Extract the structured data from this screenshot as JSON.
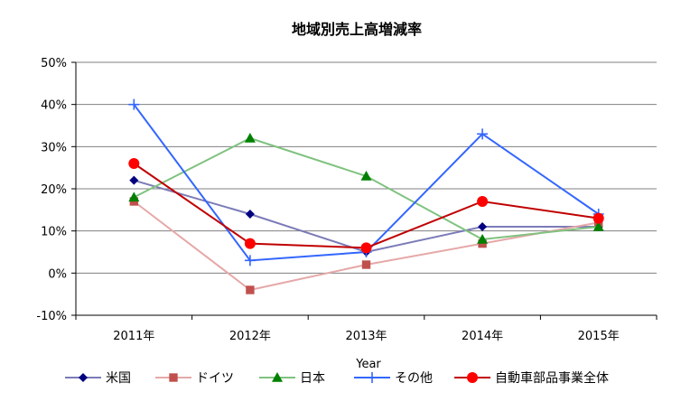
{
  "chart_data": {
    "type": "line",
    "title": "地域別売上高増減率",
    "xlabel": "Year",
    "ylabel": "",
    "categories": [
      "2011年",
      "2012年",
      "2013年",
      "2014年",
      "2015年"
    ],
    "y_ticks": [
      "-10%",
      "0%",
      "10%",
      "20%",
      "30%",
      "40%",
      "50%"
    ],
    "ylim": [
      -10,
      50
    ],
    "grid": true,
    "legend_position": "bottom",
    "series": [
      {
        "name": "米国",
        "values": [
          22,
          14,
          5,
          11,
          11
        ],
        "color": "#7b7bb8",
        "marker_color": "#000080",
        "marker": "diamond"
      },
      {
        "name": "ドイツ",
        "values": [
          17,
          -4,
          2,
          7,
          12
        ],
        "color": "#e6a8a8",
        "marker_color": "#c0504d",
        "marker": "square"
      },
      {
        "name": "日本",
        "values": [
          18,
          32,
          23,
          8,
          11
        ],
        "color": "#7fc27f",
        "marker_color": "#008000",
        "marker": "triangle"
      },
      {
        "name": "その他",
        "values": [
          40,
          3,
          5,
          33,
          14
        ],
        "color": "#3366ff",
        "marker_color": "#3366ff",
        "marker": "plus"
      },
      {
        "name": "自動車部品事業全体",
        "values": [
          26,
          7,
          6,
          17,
          13
        ],
        "color": "#c00000",
        "marker_color": "#ff0000",
        "marker": "circle"
      }
    ]
  }
}
